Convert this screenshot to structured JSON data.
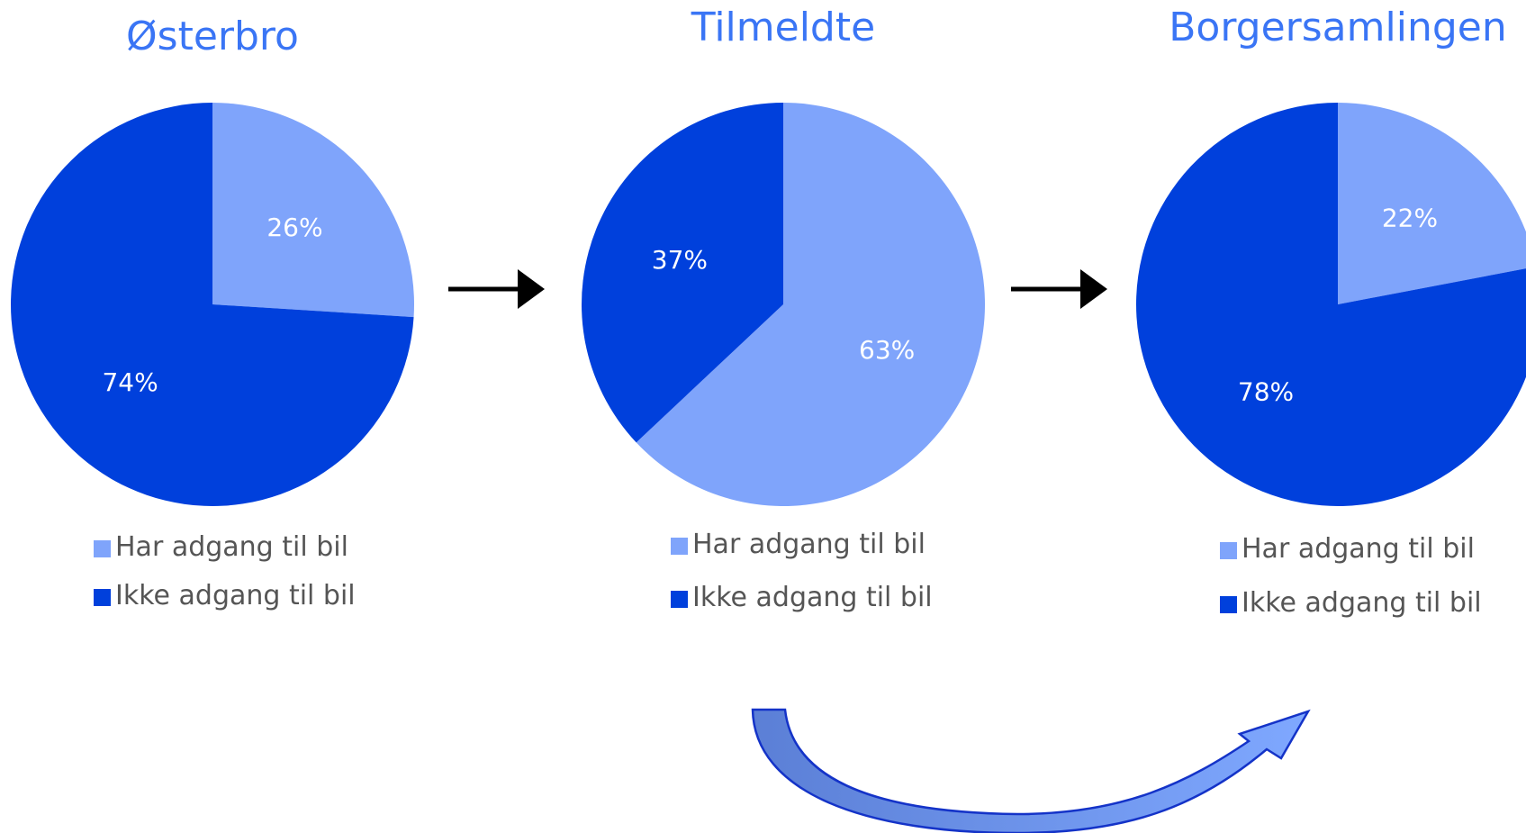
{
  "colors": {
    "title": "#3a75f5",
    "light": "#7fa4fb",
    "dark": "#0040dc",
    "legend_text": "#555555",
    "arrow": "#000000",
    "curve_fill_from": "#5b7fd6",
    "curve_fill_to": "#7fa8ff",
    "curve_stroke": "#1433c8"
  },
  "chart_data": [
    {
      "type": "pie",
      "title": "Østerbro",
      "categories": [
        "Har adgang til bil",
        "Ikke adgang til bil"
      ],
      "values": [
        26,
        74
      ],
      "labels": [
        "26%",
        "74%"
      ]
    },
    {
      "type": "pie",
      "title": "Tilmeldte",
      "categories": [
        "Har adgang til bil",
        "Ikke adgang til bil"
      ],
      "values": [
        63,
        37
      ],
      "labels": [
        "63%",
        "37%"
      ]
    },
    {
      "type": "pie",
      "title": "Borgersamlingen",
      "categories": [
        "Har adgang til bil",
        "Ikke adgang til bil"
      ],
      "values": [
        22,
        78
      ],
      "labels": [
        "22%",
        "78%"
      ]
    }
  ]
}
